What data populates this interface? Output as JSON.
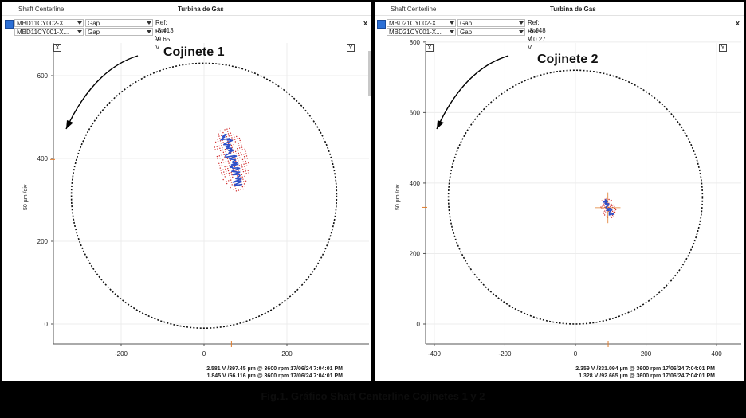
{
  "caption": "Fig.1. Gráfico Shaft Centerline Cojinetes 1 y 2",
  "panels": [
    {
      "window_title": "Shaft Centerline",
      "machine": "Turbina de Gas",
      "close_label": "x",
      "channels": [
        {
          "name": "MBD11CY002-X...",
          "measure": "Gap",
          "ref": "Ref:  -8.413 V"
        },
        {
          "name": "MBD11CY001-X...",
          "measure": "Gap",
          "ref": "Ref:  -9.65 V"
        }
      ],
      "x_button": "X",
      "y_button": "Y",
      "ylabel": "50 µm /div",
      "footer": [
        "2.581 V /397.45 µm @ 3600 rpm 17/06/24 7:04:01 PM",
        "1.845 V /66.116 µm @ 3600 rpm 17/06/24 7:04:01 PM"
      ]
    },
    {
      "window_title": "Shaft Centerline",
      "machine": "Turbina de Gas",
      "close_label": "x",
      "channels": [
        {
          "name": "MBD21CY002-X...",
          "measure": "Gap",
          "ref": "Ref:  -8.548 V"
        },
        {
          "name": "MBD21CY001-X...",
          "measure": "Gap",
          "ref": "Ref:  -10.27 V"
        }
      ],
      "x_button": "X",
      "y_button": "Y",
      "ylabel": "50 µm /div",
      "footer": [
        "2.359 V /331.094 µm @ 3600 rpm 17/06/24 7:04:01 PM",
        "1.328 V /92.665 µm @ 3600 rpm 17/06/24 7:04:01 PM"
      ]
    }
  ],
  "chart_data": [
    {
      "type": "scatter",
      "title": "Cojinete 1",
      "ylabel": "50 µm /div",
      "xlim": [
        -360,
        360
      ],
      "ylim": [
        -50,
        680
      ],
      "x_ticks": [
        -200,
        0,
        200
      ],
      "y_ticks": [
        0,
        200,
        400,
        600
      ],
      "clearance_circle": {
        "center": [
          0,
          310
        ],
        "radius": 320
      },
      "cluster": {
        "center": [
          67,
          397
        ],
        "semi_axes": [
          38,
          80
        ],
        "tilt_deg": 15
      },
      "current_point": {
        "x": 66.116,
        "y": 397.45
      },
      "rotation_arrow": "counterclockwise",
      "grid": true,
      "colors": {
        "circle": "#111111",
        "cluster_fill": "#d02828",
        "trace": "#2e4fc8",
        "marker": "#e07b2a"
      }
    },
    {
      "type": "scatter",
      "title": "Cojinete 2",
      "ylabel": "50 µm /div",
      "xlim": [
        -410,
        410
      ],
      "ylim": [
        -40,
        800
      ],
      "x_ticks": [
        -400,
        -200,
        0,
        200,
        400
      ],
      "y_ticks": [
        0,
        200,
        400,
        600,
        800
      ],
      "clearance_circle": {
        "center": [
          0,
          360
        ],
        "radius": 360
      },
      "cluster": {
        "center": [
          92,
          330
        ],
        "semi_axes": [
          22,
          30
        ],
        "tilt_deg": 25
      },
      "current_point": {
        "x": 92.665,
        "y": 331.094
      },
      "rotation_arrow": "counterclockwise",
      "grid": true,
      "colors": {
        "circle": "#111111",
        "cluster_fill": "#d02828",
        "trace": "#2e4fc8",
        "marker": "#e07b2a"
      }
    }
  ]
}
